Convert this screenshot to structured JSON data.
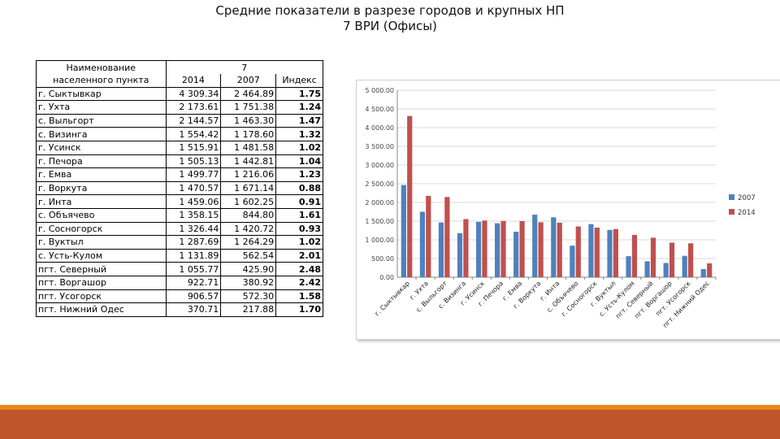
{
  "title": {
    "line1": "Средние показатели в разрезе городов и крупных НП",
    "line2": "7 ВРИ (Офисы)"
  },
  "table": {
    "name_header_line1": "Наименование",
    "name_header_line2": "населенного пункта",
    "group_header": "7",
    "col_2014": "2014",
    "col_2007": "2007",
    "col_index": "Индекс",
    "rows": [
      {
        "name": "г. Сыктывкар",
        "v2014": "4 309.34",
        "v2007": "2 464.89",
        "index": "1.75"
      },
      {
        "name": "г. Ухта",
        "v2014": "2 173.61",
        "v2007": "1 751.38",
        "index": "1.24"
      },
      {
        "name": "с. Выльгорт",
        "v2014": "2 144.57",
        "v2007": "1 463.30",
        "index": "1.47"
      },
      {
        "name": "с. Визинга",
        "v2014": "1 554.42",
        "v2007": "1 178.60",
        "index": "1.32"
      },
      {
        "name": "г. Усинск",
        "v2014": "1 515.91",
        "v2007": "1 481.58",
        "index": "1.02"
      },
      {
        "name": "г. Печора",
        "v2014": "1 505.13",
        "v2007": "1 442.81",
        "index": "1.04"
      },
      {
        "name": "г. Емва",
        "v2014": "1 499.77",
        "v2007": "1 216.06",
        "index": "1.23"
      },
      {
        "name": "г. Воркута",
        "v2014": "1 470.57",
        "v2007": "1 671.14",
        "index": "0.88"
      },
      {
        "name": "г. Инта",
        "v2014": "1 459.06",
        "v2007": "1 602.25",
        "index": "0.91"
      },
      {
        "name": "с. Объячево",
        "v2014": "1 358.15",
        "v2007": "844.80",
        "index": "1.61"
      },
      {
        "name": "г. Сосногорск",
        "v2014": "1 326.44",
        "v2007": "1 420.72",
        "index": "0.93"
      },
      {
        "name": "г. Вуктыл",
        "v2014": "1 287.69",
        "v2007": "1 264.29",
        "index": "1.02"
      },
      {
        "name": "с. Усть-Кулом",
        "v2014": "1 131.89",
        "v2007": "562.54",
        "index": "2.01"
      },
      {
        "name": "пгт. Северный",
        "v2014": "1 055.77",
        "v2007": "425.90",
        "index": "2.48"
      },
      {
        "name": "пгт. Воргашор",
        "v2014": "922.71",
        "v2007": "380.92",
        "index": "2.42"
      },
      {
        "name": "пгт. Усогорск",
        "v2014": "906.57",
        "v2007": "572.30",
        "index": "1.58"
      },
      {
        "name": "пгт. Нижний Одес",
        "v2014": "370.71",
        "v2007": "217.88",
        "index": "1.70"
      }
    ]
  },
  "chart_data": {
    "type": "bar",
    "categories": [
      "г. Сыктывкар",
      "г. Ухта",
      "с. Выльгорт",
      "с. Визинга",
      "г. Усинск",
      "г. Печора",
      "г. Емва",
      "г. Воркута",
      "г. Инта",
      "с. Объячево",
      "г. Сосногорск",
      "г. Вуктыл",
      "с. Усть-Кулом",
      "пгт. Северный",
      "пгт. Воргашор",
      "пгт. Усогорск",
      "пгт. Нижний Одес"
    ],
    "series": [
      {
        "name": "2007",
        "color": "#4f81bd",
        "values": [
          2464.89,
          1751.38,
          1463.3,
          1178.6,
          1481.58,
          1442.81,
          1216.06,
          1671.14,
          1602.25,
          844.8,
          1420.72,
          1264.29,
          562.54,
          425.9,
          380.92,
          572.3,
          217.88
        ]
      },
      {
        "name": "2014",
        "color": "#c0504d",
        "values": [
          4309.34,
          2173.61,
          2144.57,
          1554.42,
          1515.91,
          1505.13,
          1499.77,
          1470.57,
          1459.06,
          1358.15,
          1326.44,
          1287.69,
          1131.89,
          1055.77,
          922.71,
          906.57,
          370.71
        ]
      }
    ],
    "yticks": [
      "0.00",
      "500.00",
      "1 000.00",
      "1 500.00",
      "2 000.00",
      "2 500.00",
      "3 000.00",
      "3 500.00",
      "4 000.00",
      "4 500.00",
      "5 000.00"
    ],
    "ylim": [
      0,
      5000
    ],
    "grid": true,
    "legend_position": "right"
  }
}
